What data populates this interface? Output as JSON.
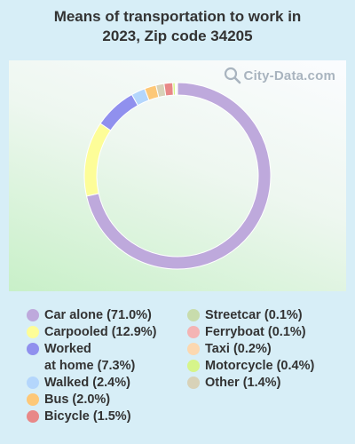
{
  "title_line1": "Means of transportation to work in",
  "title_line2": "2023, Zip code 34205",
  "watermark": "City-Data.com",
  "chart_data": {
    "type": "pie",
    "title": "Means of transportation to work in 2023, Zip code 34205",
    "donut": true,
    "slices": [
      {
        "label": "Car alone (71.0%)",
        "value": 71.0,
        "color": "#bea9dc"
      },
      {
        "label": "Carpooled (12.9%)",
        "value": 12.9,
        "color": "#fdfd98"
      },
      {
        "label": "Worked\nat home (7.3%)",
        "value": 7.3,
        "color": "#9090ee"
      },
      {
        "label": "Walked (2.4%)",
        "value": 2.4,
        "color": "#b4d6fc"
      },
      {
        "label": "Bus (2.0%)",
        "value": 2.0,
        "color": "#fdc878"
      },
      {
        "label": "Other (1.4%)",
        "value": 1.4,
        "color": "#d8d2b8"
      },
      {
        "label": "Bicycle (1.5%)",
        "value": 1.5,
        "color": "#e88888"
      },
      {
        "label": "Motorcycle (0.4%)",
        "value": 0.4,
        "color": "#d6f58a"
      },
      {
        "label": "Taxi (0.2%)",
        "value": 0.2,
        "color": "#fcd8b0"
      },
      {
        "label": "Ferryboat (0.1%)",
        "value": 0.1,
        "color": "#f4b4b4"
      },
      {
        "label": "Streetcar (0.1%)",
        "value": 0.1,
        "color": "#c8dcac"
      }
    ],
    "legend_left": [
      0,
      1,
      2,
      3,
      4,
      6
    ],
    "legend_right": [
      10,
      9,
      8,
      7,
      5
    ]
  }
}
